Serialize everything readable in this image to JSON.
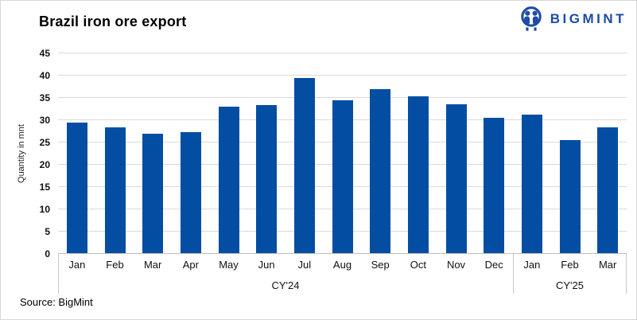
{
  "header": {
    "brand_name": "BIGMINT"
  },
  "footer": {
    "source": "Source: BigMint"
  },
  "colors": {
    "bar": "#034ea2",
    "brand": "#1e4ba6",
    "gridline": "#dadada",
    "axis": "#bfbfbf"
  },
  "chart_data": {
    "type": "bar",
    "title": "Brazil iron ore export",
    "ylabel": "Quantity in mnt",
    "ylim": [
      0,
      45
    ],
    "ytick_step": 5,
    "grid": true,
    "bar_color": "#034ea2",
    "categories": [
      "Jan",
      "Feb",
      "Mar",
      "Apr",
      "May",
      "Jun",
      "Jul",
      "Aug",
      "Sep",
      "Oct",
      "Nov",
      "Dec",
      "Jan",
      "Feb",
      "Mar"
    ],
    "values": [
      29.3,
      28.3,
      26.7,
      27.2,
      32.8,
      33.2,
      39.3,
      34.3,
      36.8,
      35.1,
      33.4,
      30.4,
      31.0,
      25.4,
      28.3
    ],
    "groups": [
      {
        "label": "CY'24",
        "count": 12
      },
      {
        "label": "CY'25",
        "count": 3
      }
    ]
  }
}
